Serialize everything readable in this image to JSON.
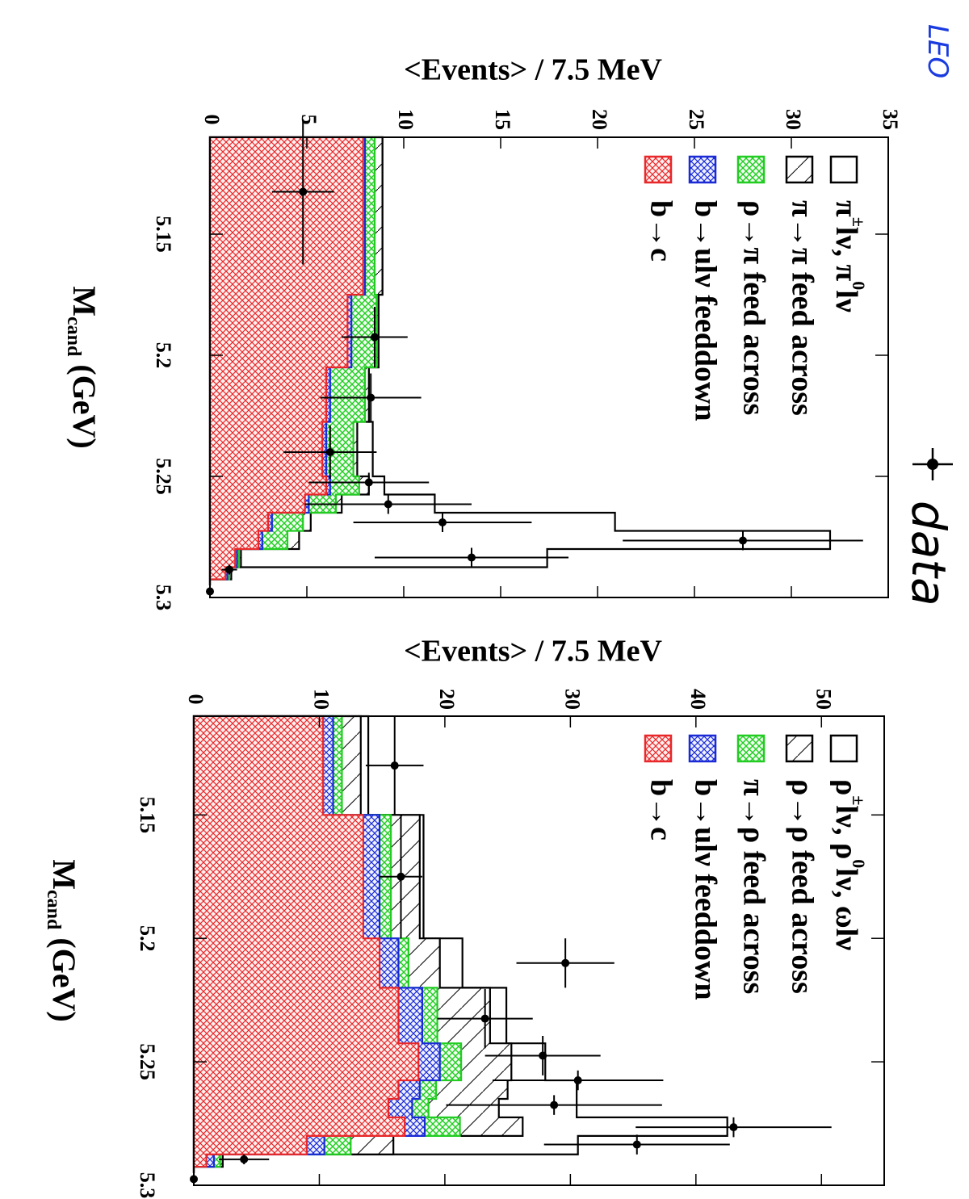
{
  "corner_mark": "LEO",
  "handwritten_label": "data",
  "chart_data": [
    {
      "type": "histogram",
      "orientation": "rotated-90-clockwise",
      "ylabel": "<Events> / 7.5 MeV",
      "xlabel_main": "M",
      "xlabel_sub": "cand",
      "xlabel_unit": "(GeV)",
      "xlim": [
        5.11,
        5.3
      ],
      "ylim": [
        0,
        35
      ],
      "xticks": [
        "5.15",
        "5.2",
        "5.25",
        "5.3"
      ],
      "yticks": [
        "0",
        "5",
        "10",
        "15",
        "20",
        "25",
        "30",
        "35"
      ],
      "bin_edges": [
        5.11,
        5.175,
        5.205,
        5.2275,
        5.25,
        5.2575,
        5.265,
        5.2725,
        5.28,
        5.2875,
        5.2925,
        5.295
      ],
      "stacks": {
        "b_to_c": [
          7.9,
          7.1,
          6.0,
          5.8,
          6.0,
          4.9,
          3.0,
          2.5,
          1.3,
          0.8,
          0.0
        ],
        "b_to_ulv": [
          8.0,
          7.3,
          6.2,
          6.0,
          6.2,
          5.1,
          3.2,
          2.7,
          1.4,
          0.9,
          0.0
        ],
        "rho_to_pi": [
          8.5,
          8.6,
          8.0,
          7.4,
          7.7,
          6.5,
          4.8,
          4.0,
          1.5,
          1.0,
          0.0
        ],
        "pi_to_pi": [
          8.9,
          8.7,
          8.2,
          7.6,
          8.2,
          6.8,
          5.2,
          4.6,
          1.6,
          1.1,
          0.0
        ],
        "signal": [
          8.9,
          8.7,
          8.2,
          8.4,
          9.0,
          11.6,
          20.9,
          32.0,
          17.4,
          1.1,
          0.0
        ]
      },
      "data_points": [
        {
          "x": 5.1325,
          "y": 4.8,
          "xerr": 0.03,
          "yerr": 1.6
        },
        {
          "x": 5.1925,
          "y": 8.5,
          "xerr": 0.0125,
          "yerr": 1.7
        },
        {
          "x": 5.2175,
          "y": 8.3,
          "xerr": 0.01,
          "yerr": 2.6
        },
        {
          "x": 5.24,
          "y": 6.2,
          "xerr": 0.011,
          "yerr": 2.4
        },
        {
          "x": 5.2525,
          "y": 8.2,
          "xerr": 0.004,
          "yerr": 3.1
        },
        {
          "x": 5.2615,
          "y": 9.2,
          "xerr": 0.004,
          "yerr": 4.3
        },
        {
          "x": 5.269,
          "y": 12.0,
          "xerr": 0.004,
          "yerr": 4.6
        },
        {
          "x": 5.2765,
          "y": 27.5,
          "xerr": 0.004,
          "yerr": 6.2
        },
        {
          "x": 5.2835,
          "y": 13.5,
          "xerr": 0.004,
          "yerr": 5.0
        },
        {
          "x": 5.2885,
          "y": 1.0,
          "xerr": 0.002,
          "yerr": 0.4
        },
        {
          "x": 5.2975,
          "y": 0.0,
          "xerr": 0.0,
          "yerr": 0.0
        }
      ],
      "legend": [
        {
          "key": "signal",
          "line1": "π",
          "sup1": "±",
          "rest": "lν, π",
          "sup2": "0",
          "tail": "lν",
          "color": "#000000",
          "fill": "none"
        },
        {
          "key": "feed",
          "label": "π→π feed across",
          "color": "#000000",
          "fill": "hatch"
        },
        {
          "key": "cross",
          "label": "ρ→π feed across",
          "color": "#22cc22",
          "fill": "green"
        },
        {
          "key": "ulv",
          "label": "b→ulν feeddown",
          "color": "#1a2bd6",
          "fill": "blue"
        },
        {
          "key": "btoc",
          "label": "b→c",
          "color": "#e8282a",
          "fill": "red"
        }
      ]
    },
    {
      "type": "histogram",
      "orientation": "rotated-90-clockwise",
      "ylabel": "<Events> / 7.5 MeV",
      "xlabel_main": "M",
      "xlabel_sub": "cand",
      "xlabel_unit": "(GeV)",
      "xlim": [
        5.11,
        5.3
      ],
      "ylim": [
        0,
        55
      ],
      "xticks": [
        "5.15",
        "5.2",
        "5.25",
        "5.3"
      ],
      "yticks": [
        "0",
        "10",
        "20",
        "30",
        "40",
        "50"
      ],
      "bin_edges": [
        5.11,
        5.15,
        5.2,
        5.22,
        5.2425,
        5.2575,
        5.265,
        5.2725,
        5.28,
        5.2875,
        5.2925,
        5.295
      ],
      "stacks": {
        "b_to_c": [
          10.3,
          13.5,
          14.8,
          16.3,
          17.9,
          16.3,
          15.5,
          16.8,
          9.0,
          1.0,
          0.0
        ],
        "b_to_ulv": [
          11.1,
          14.8,
          16.3,
          18.2,
          19.6,
          18.0,
          17.4,
          18.4,
          10.4,
          1.6,
          0.0
        ],
        "rho_to_pi": [
          11.8,
          15.7,
          17.1,
          19.4,
          21.3,
          19.3,
          18.7,
          21.2,
          12.5,
          2.1,
          0.0
        ],
        "rho_to_rho": [
          13.3,
          18.0,
          19.6,
          23.6,
          25.3,
          25.0,
          24.3,
          26.2,
          15.9,
          2.3,
          0.0
        ],
        "signal": [
          13.9,
          18.3,
          21.4,
          24.9,
          28.0,
          30.5,
          30.5,
          42.5,
          30.6,
          2.3,
          0.0
        ]
      },
      "data_points": [
        {
          "x": 5.13,
          "y": 16.0,
          "xerr": 0.02,
          "yerr": 2.3
        },
        {
          "x": 5.175,
          "y": 16.5,
          "xerr": 0.025,
          "yerr": 1.7
        },
        {
          "x": 5.21,
          "y": 29.6,
          "xerr": 0.01,
          "yerr": 3.9
        },
        {
          "x": 5.2325,
          "y": 23.2,
          "xerr": 0.012,
          "yerr": 3.8
        },
        {
          "x": 5.2475,
          "y": 27.8,
          "xerr": 0.008,
          "yerr": 4.6
        },
        {
          "x": 5.2575,
          "y": 30.6,
          "xerr": 0.004,
          "yerr": 6.8
        },
        {
          "x": 5.2675,
          "y": 28.7,
          "xerr": 0.004,
          "yerr": 8.6
        },
        {
          "x": 5.2765,
          "y": 43.0,
          "xerr": 0.004,
          "yerr": 7.8
        },
        {
          "x": 5.2835,
          "y": 35.3,
          "xerr": 0.004,
          "yerr": 7.4
        },
        {
          "x": 5.2895,
          "y": 4.0,
          "xerr": 0.002,
          "yerr": 2.0
        },
        {
          "x": 5.2975,
          "y": 0.0,
          "xerr": 0.0,
          "yerr": 0.0
        }
      ],
      "legend": [
        {
          "key": "signal",
          "line1": "ρ",
          "sup1": "±",
          "rest": "lν, ρ",
          "sup2": "0",
          "tail": "lν, ωlν",
          "color": "#000000",
          "fill": "none"
        },
        {
          "key": "feed",
          "label": "ρ→ρ feed across",
          "color": "#000000",
          "fill": "hatch"
        },
        {
          "key": "cross",
          "label": "π→ρ feed across",
          "color": "#22cc22",
          "fill": "green"
        },
        {
          "key": "ulv",
          "label": "b→ulν feeddown",
          "color": "#1a2bd6",
          "fill": "blue"
        },
        {
          "key": "btoc",
          "label": "b→c",
          "color": "#e8282a",
          "fill": "red"
        }
      ]
    }
  ]
}
